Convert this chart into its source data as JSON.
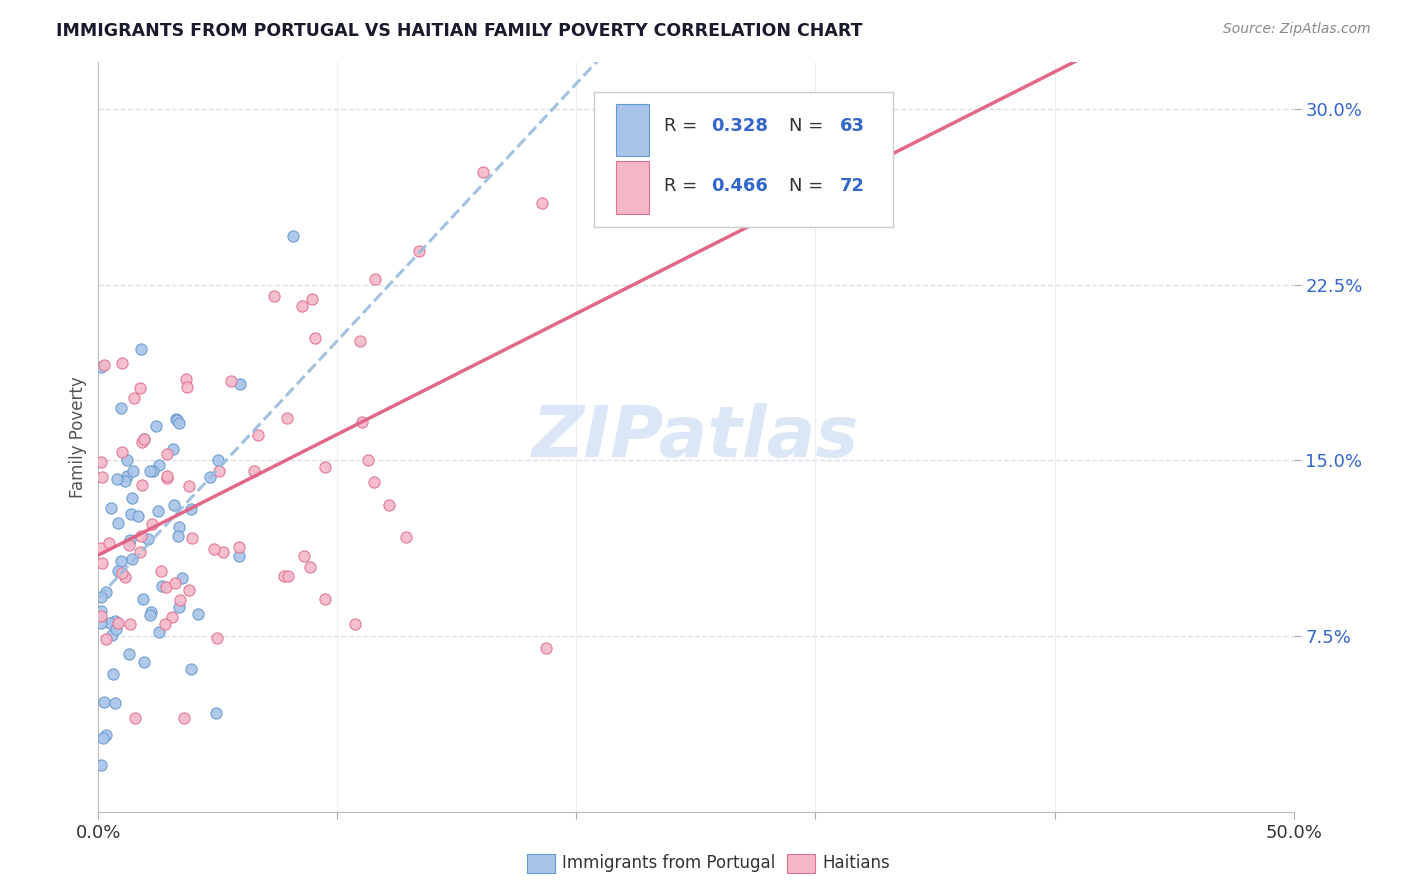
{
  "title": "IMMIGRANTS FROM PORTUGAL VS HAITIAN FAMILY POVERTY CORRELATION CHART",
  "source": "Source: ZipAtlas.com",
  "ylabel": "Family Poverty",
  "xlim": [
    0.0,
    0.5
  ],
  "ylim": [
    0.0,
    0.32
  ],
  "xticks": [
    0.0,
    0.1,
    0.2,
    0.3,
    0.4,
    0.5
  ],
  "xtick_labels": [
    "0.0%",
    "",
    "",
    "",
    "",
    "50.0%"
  ],
  "ytick_labels": [
    "7.5%",
    "15.0%",
    "22.5%",
    "30.0%"
  ],
  "ytick_values": [
    0.075,
    0.15,
    0.225,
    0.3
  ],
  "color_portugal_fill": "#a8c4e8",
  "color_portugal_edge": "#6699cc",
  "color_haiti_fill": "#f4b8c8",
  "color_haiti_edge": "#e07090",
  "color_portugal_line": "#99bbdd",
  "color_haiti_line": "#e06080",
  "color_blue_text": "#3366cc",
  "grid_color": "#ddddee",
  "watermark_color": "#ccddf5",
  "legend_r1": "R = 0.328",
  "legend_n1": "N = 63",
  "legend_r2": "R = 0.466",
  "legend_n2": "N = 72",
  "r1": 0.328,
  "n1": 63,
  "r2": 0.466,
  "n2": 72,
  "seed": 12345
}
